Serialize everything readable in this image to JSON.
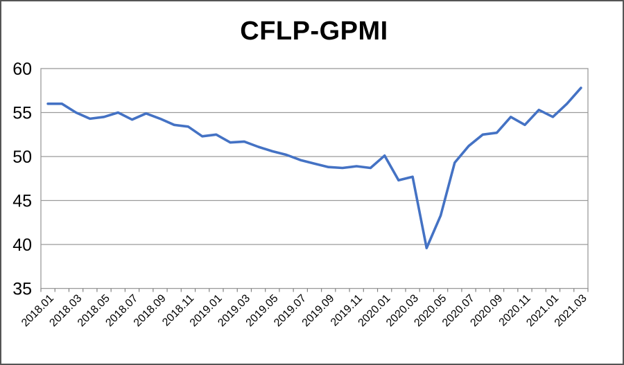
{
  "title": "CFLP-GPMI",
  "colors": {
    "line": "#4472C4",
    "grid": "#9a9a9a",
    "axis": "#808080",
    "text": "#000000",
    "background": "#ffffff",
    "frame_border": "#555555"
  },
  "chart_data": {
    "type": "line",
    "title": "CFLP-GPMI",
    "x": [
      "2018.01",
      "2018.02",
      "2018.03",
      "2018.04",
      "2018.05",
      "2018.06",
      "2018.07",
      "2018.08",
      "2018.09",
      "2018.10",
      "2018.11",
      "2018.12",
      "2019.01",
      "2019.02",
      "2019.03",
      "2019.04",
      "2019.05",
      "2019.06",
      "2019.07",
      "2019.08",
      "2019.09",
      "2019.10",
      "2019.11",
      "2019.12",
      "2020.01",
      "2020.02",
      "2020.03",
      "2020.04",
      "2020.05",
      "2020.06",
      "2020.07",
      "2020.08",
      "2020.09",
      "2020.10",
      "2020.11",
      "2020.12",
      "2021.01",
      "2021.02",
      "2021.03"
    ],
    "values": [
      56.0,
      56.0,
      55.0,
      54.3,
      54.5,
      55.0,
      54.2,
      54.9,
      54.3,
      53.6,
      53.4,
      52.3,
      52.5,
      51.6,
      51.7,
      51.1,
      50.6,
      50.2,
      49.6,
      49.2,
      48.8,
      48.7,
      48.9,
      48.7,
      50.1,
      47.3,
      47.7,
      39.6,
      43.3,
      49.3,
      51.2,
      52.5,
      52.7,
      54.5,
      53.6,
      55.3,
      54.5,
      56.0,
      57.8
    ],
    "x_tick_labels_shown": [
      "2018.01",
      "2018.03",
      "2018.05",
      "2018.07",
      "2018.09",
      "2018.11",
      "2019.01",
      "2019.03",
      "2019.05",
      "2019.07",
      "2019.09",
      "2019.11",
      "2020.01",
      "2020.03",
      "2020.05",
      "2020.07",
      "2020.09",
      "2020.11",
      "2021.01",
      "2021.03"
    ],
    "x_label_step": 2,
    "y_ticks": [
      35,
      40,
      45,
      50,
      55,
      60
    ],
    "ylim": [
      35,
      60
    ],
    "xlabel": "",
    "ylabel": "",
    "grid": "horizontal",
    "legend": "none",
    "line_color": "#4472C4",
    "marker": "none"
  }
}
